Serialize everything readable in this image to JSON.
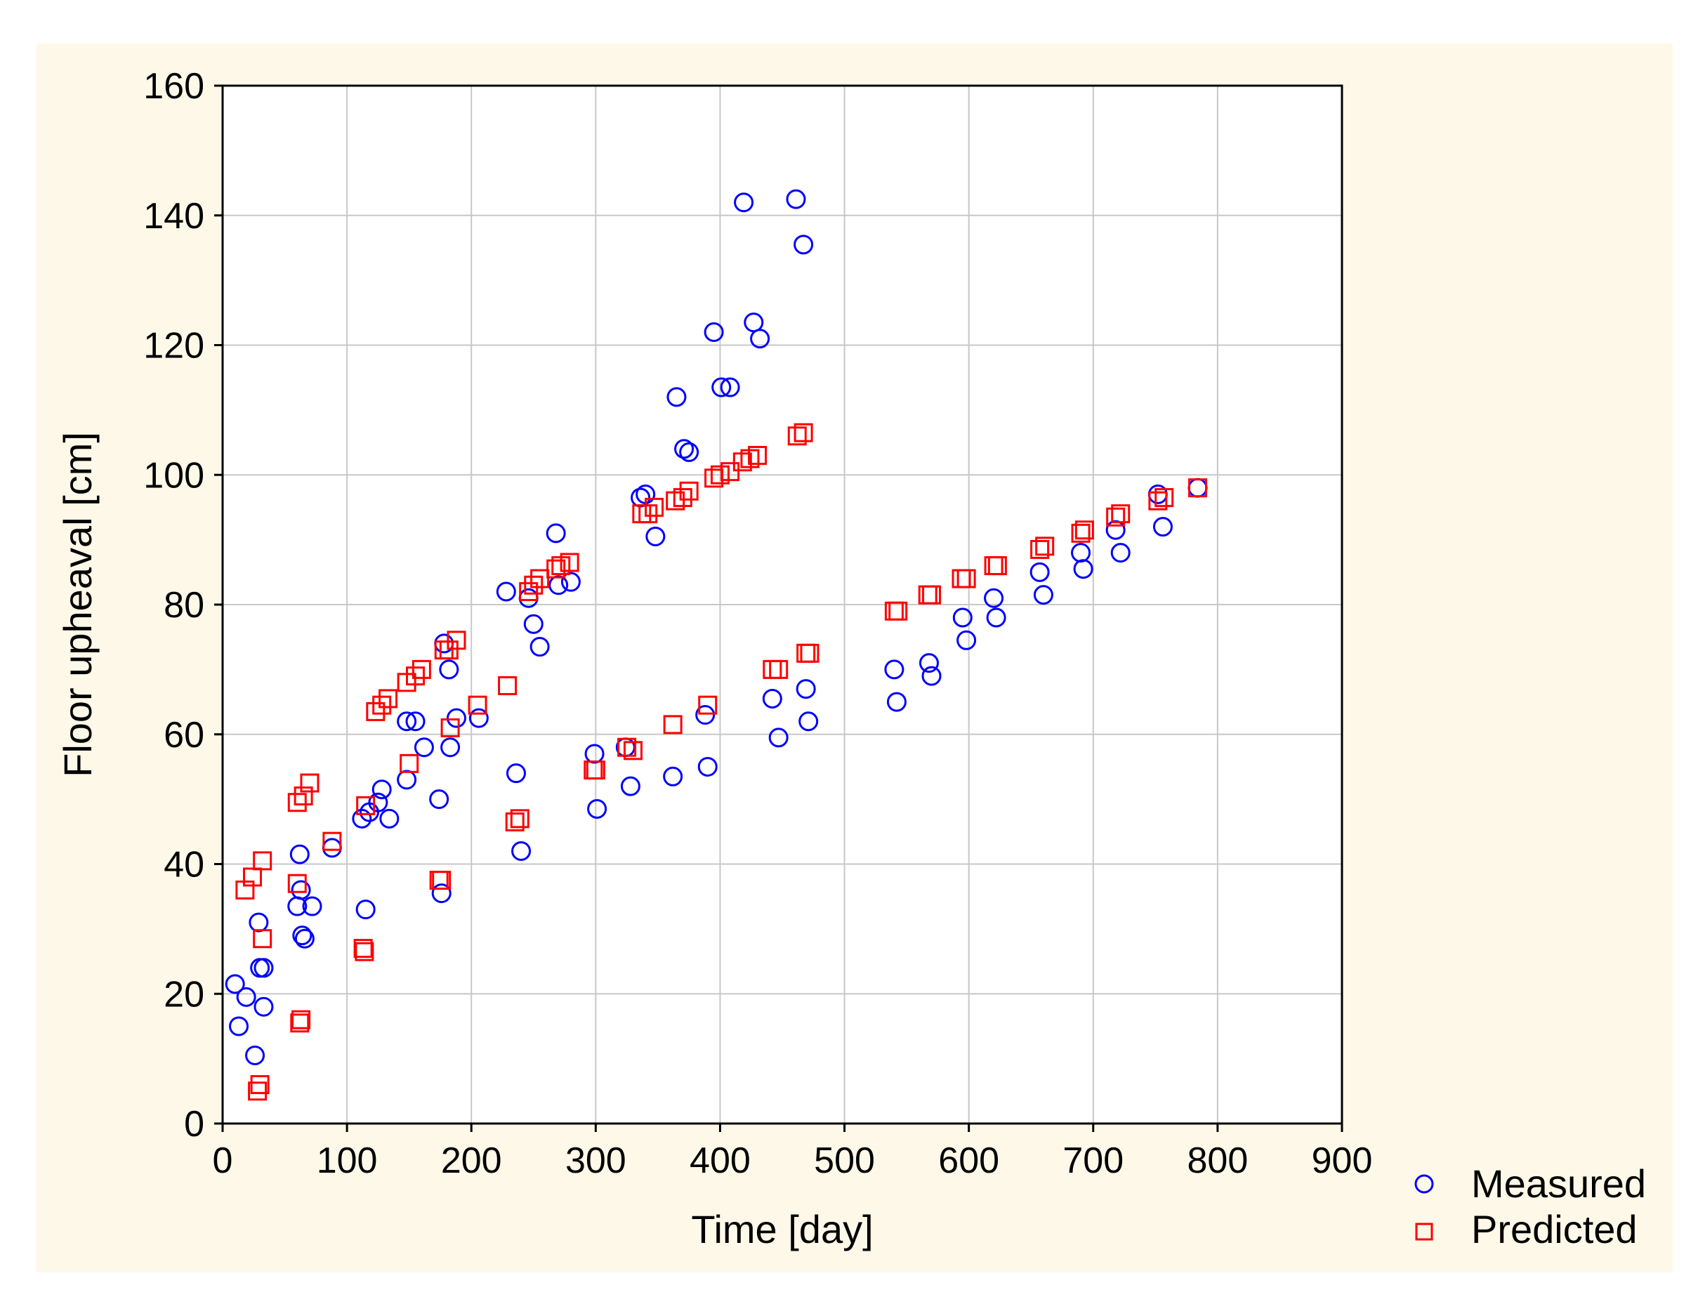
{
  "colors": {
    "background": "#fdf8e8",
    "plot_background": "#ffffff",
    "grid": "#c8c8c8",
    "measured": "#0000ff",
    "predicted": "#ff0000"
  },
  "chart_data": {
    "type": "scatter",
    "title": "",
    "xlabel": "Time [day]",
    "ylabel": "Floor upheaval [cm]",
    "xlim": [
      0,
      900
    ],
    "ylim": [
      0,
      160
    ],
    "xticks": [
      "0",
      "100",
      "200",
      "300",
      "400",
      "500",
      "600",
      "700",
      "800",
      "900"
    ],
    "yticks": [
      "0",
      "20",
      "40",
      "60",
      "80",
      "100",
      "120",
      "140",
      "160"
    ],
    "grid": true,
    "legend_position": "outside-bottom-right",
    "series": [
      {
        "name": "Measured",
        "marker": "circle",
        "points": [
          [
            10,
            21.5
          ],
          [
            13,
            15
          ],
          [
            19,
            19.5
          ],
          [
            26,
            10.5
          ],
          [
            29,
            31
          ],
          [
            30,
            24
          ],
          [
            33,
            24
          ],
          [
            33,
            18
          ],
          [
            60,
            33.5
          ],
          [
            62,
            41.5
          ],
          [
            63,
            36
          ],
          [
            64,
            29
          ],
          [
            66,
            28.5
          ],
          [
            72,
            33.5
          ],
          [
            88,
            42.5
          ],
          [
            112,
            47
          ],
          [
            115,
            33
          ],
          [
            118,
            48
          ],
          [
            125,
            49.5
          ],
          [
            128,
            51.5
          ],
          [
            134,
            47
          ],
          [
            148,
            53
          ],
          [
            148,
            62
          ],
          [
            155,
            62
          ],
          [
            162,
            58
          ],
          [
            174,
            50
          ],
          [
            176,
            35.5
          ],
          [
            178,
            74
          ],
          [
            182,
            70
          ],
          [
            183,
            58
          ],
          [
            188,
            62.5
          ],
          [
            206,
            62.5
          ],
          [
            228,
            82
          ],
          [
            236,
            54
          ],
          [
            240,
            42
          ],
          [
            246,
            81
          ],
          [
            250,
            77
          ],
          [
            255,
            73.5
          ],
          [
            268,
            91
          ],
          [
            270,
            83
          ],
          [
            280,
            83.5
          ],
          [
            299,
            57
          ],
          [
            301,
            48.5
          ],
          [
            324,
            58
          ],
          [
            328,
            52
          ],
          [
            336,
            96.5
          ],
          [
            340,
            97
          ],
          [
            348,
            90.5
          ],
          [
            362,
            53.5
          ],
          [
            365,
            112
          ],
          [
            371,
            104
          ],
          [
            375,
            103.5
          ],
          [
            388,
            63
          ],
          [
            390,
            55
          ],
          [
            395,
            122
          ],
          [
            401,
            113.5
          ],
          [
            408,
            113.5
          ],
          [
            419,
            142
          ],
          [
            427,
            123.5
          ],
          [
            432,
            121
          ],
          [
            442,
            65.5
          ],
          [
            447,
            59.5
          ],
          [
            461,
            142.5
          ],
          [
            467,
            135.5
          ],
          [
            469,
            67
          ],
          [
            471,
            62
          ],
          [
            540,
            70
          ],
          [
            542,
            65
          ],
          [
            568,
            71
          ],
          [
            570,
            69
          ],
          [
            595,
            78
          ],
          [
            598,
            74.5
          ],
          [
            620,
            81
          ],
          [
            622,
            78
          ],
          [
            657,
            85
          ],
          [
            660,
            81.5
          ],
          [
            690,
            88
          ],
          [
            692,
            85.5
          ],
          [
            718,
            91.5
          ],
          [
            722,
            88
          ],
          [
            752,
            97
          ],
          [
            756,
            92
          ],
          [
            784,
            98
          ]
        ]
      },
      {
        "name": "Predicted",
        "marker": "square",
        "points": [
          [
            18,
            36
          ],
          [
            24,
            38
          ],
          [
            28,
            5
          ],
          [
            30,
            6
          ],
          [
            32,
            40.5
          ],
          [
            32,
            28.5
          ],
          [
            60,
            49.5
          ],
          [
            60,
            37
          ],
          [
            62,
            15.5
          ],
          [
            63,
            16
          ],
          [
            65,
            50.5
          ],
          [
            70,
            52.5
          ],
          [
            88,
            43.5
          ],
          [
            113,
            27
          ],
          [
            114,
            26.5
          ],
          [
            115,
            49
          ],
          [
            123,
            63.5
          ],
          [
            128,
            64.5
          ],
          [
            133,
            65.5
          ],
          [
            148,
            68
          ],
          [
            150,
            55.5
          ],
          [
            155,
            69
          ],
          [
            160,
            70
          ],
          [
            174,
            37.5
          ],
          [
            176,
            37.5
          ],
          [
            178,
            73
          ],
          [
            182,
            73
          ],
          [
            183,
            61
          ],
          [
            188,
            74.5
          ],
          [
            205,
            64.5
          ],
          [
            229,
            67.5
          ],
          [
            235,
            46.5
          ],
          [
            239,
            47
          ],
          [
            246,
            82
          ],
          [
            250,
            83
          ],
          [
            255,
            84
          ],
          [
            268,
            85.5
          ],
          [
            272,
            86
          ],
          [
            279,
            86.5
          ],
          [
            298,
            54.5
          ],
          [
            300,
            54.5
          ],
          [
            325,
            58
          ],
          [
            330,
            57.5
          ],
          [
            337,
            94
          ],
          [
            342,
            94
          ],
          [
            347,
            95
          ],
          [
            362,
            61.5
          ],
          [
            364,
            96
          ],
          [
            370,
            96.5
          ],
          [
            375,
            97.5
          ],
          [
            390,
            64.5
          ],
          [
            395,
            99.5
          ],
          [
            400,
            100
          ],
          [
            408,
            100.5
          ],
          [
            418,
            102
          ],
          [
            424,
            102.5
          ],
          [
            430,
            103
          ],
          [
            442,
            70
          ],
          [
            447,
            70
          ],
          [
            462,
            106
          ],
          [
            467,
            106.5
          ],
          [
            469,
            72.5
          ],
          [
            472,
            72.5
          ],
          [
            540,
            79
          ],
          [
            543,
            79
          ],
          [
            567,
            81.5
          ],
          [
            570,
            81.5
          ],
          [
            594,
            84
          ],
          [
            598,
            84
          ],
          [
            620,
            86
          ],
          [
            623,
            86
          ],
          [
            657,
            88.5
          ],
          [
            661,
            89
          ],
          [
            690,
            91
          ],
          [
            693,
            91.5
          ],
          [
            718,
            93.5
          ],
          [
            722,
            94
          ],
          [
            752,
            96
          ],
          [
            757,
            96.5
          ],
          [
            784,
            98
          ]
        ]
      }
    ]
  }
}
